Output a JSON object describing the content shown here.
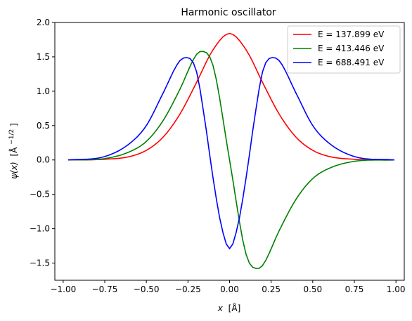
{
  "chart_data": {
    "type": "line",
    "title": "Harmonic oscillator",
    "xlabel_var": "x",
    "xlabel_unit": "[Å]",
    "ylabel_var": "ψ(x)",
    "ylabel_unit": "[Å",
    "ylabel_exp": "−1/2",
    "ylabel_close": "]",
    "xlim": [
      -1.05,
      1.05
    ],
    "ylim": [
      -1.75,
      2.0
    ],
    "xticks": [
      -1.0,
      -0.75,
      -0.5,
      -0.25,
      0.0,
      0.25,
      0.5,
      0.75,
      1.0
    ],
    "xtick_labels": [
      "−1.00",
      "−0.75",
      "−0.50",
      "−0.25",
      "0.00",
      "0.25",
      "0.50",
      "0.75",
      "1.00"
    ],
    "yticks": [
      -1.5,
      -1.0,
      -0.5,
      0.0,
      0.5,
      1.0,
      1.5,
      2.0
    ],
    "ytick_labels": [
      "−1.5",
      "−1.0",
      "−0.5",
      "0.0",
      "0.5",
      "1.0",
      "1.5",
      "2.0"
    ],
    "grid": false,
    "legend_position": "top-right",
    "x_range_of_data": [
      -0.97,
      0.99
    ],
    "n_points": 100,
    "series": [
      {
        "name": "E = 137.899 eV",
        "color": "#ff0000",
        "x": [
          -0.97,
          -0.75,
          -0.6,
          -0.5,
          -0.4,
          -0.3,
          -0.2,
          -0.1,
          0.0,
          0.1,
          0.2,
          0.3,
          0.4,
          0.5,
          0.6,
          0.75,
          0.99
        ],
        "y": [
          0.0,
          0.01,
          0.05,
          0.14,
          0.33,
          0.66,
          1.12,
          1.6,
          1.84,
          1.6,
          1.12,
          0.66,
          0.33,
          0.14,
          0.05,
          0.01,
          0.0
        ]
      },
      {
        "name": "E = 413.446 eV",
        "color": "#008000",
        "x": [
          -0.97,
          -0.75,
          -0.6,
          -0.5,
          -0.4,
          -0.3,
          -0.2,
          -0.17,
          -0.1,
          0.0,
          0.1,
          0.17,
          0.2,
          0.3,
          0.4,
          0.5,
          0.6,
          0.75,
          0.99
        ],
        "y": [
          0.0,
          0.02,
          0.12,
          0.27,
          0.57,
          1.02,
          1.53,
          1.58,
          1.38,
          0.0,
          -1.38,
          -1.58,
          -1.53,
          -1.02,
          -0.57,
          -0.27,
          -0.12,
          -0.02,
          0.0
        ]
      },
      {
        "name": "E = 688.491 eV",
        "color": "#0000ff",
        "x": [
          -0.97,
          -0.75,
          -0.6,
          -0.5,
          -0.4,
          -0.3,
          -0.26,
          -0.2,
          -0.15,
          -0.1,
          -0.05,
          0.0,
          0.05,
          0.1,
          0.15,
          0.2,
          0.26,
          0.3,
          0.4,
          0.5,
          0.6,
          0.75,
          0.99
        ],
        "y": [
          0.0,
          0.05,
          0.24,
          0.5,
          0.97,
          1.44,
          1.49,
          1.3,
          0.6,
          -0.25,
          -0.95,
          -1.29,
          -0.95,
          -0.25,
          0.6,
          1.3,
          1.49,
          1.44,
          0.97,
          0.5,
          0.24,
          0.05,
          0.0
        ]
      }
    ]
  }
}
